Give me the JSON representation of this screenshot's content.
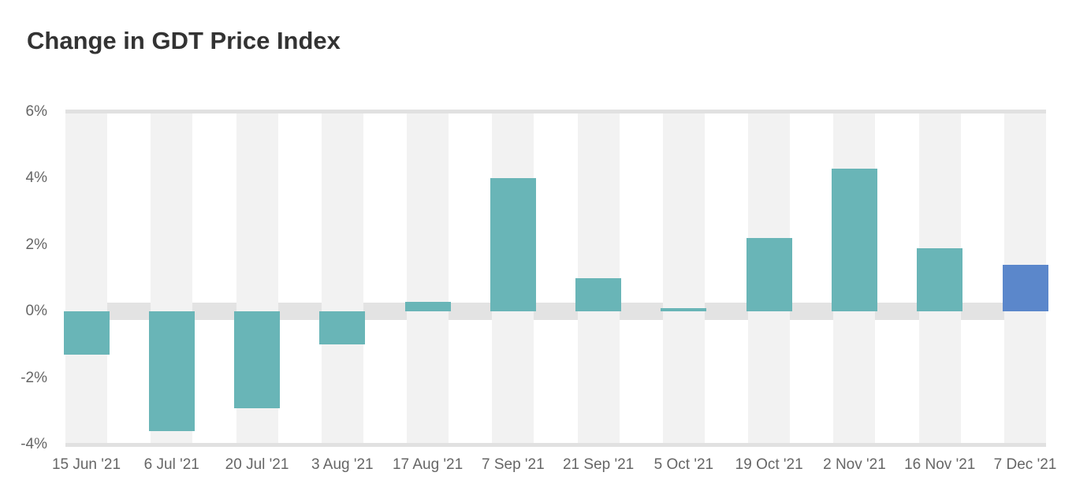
{
  "page": {
    "background": "#ffffff"
  },
  "chart_data": {
    "type": "bar",
    "title": "Change in GDT Price Index",
    "categories": [
      "15 Jun '21",
      "6 Jul '21",
      "20 Jul '21",
      "3 Aug '21",
      "17 Aug '21",
      "7 Sep '21",
      "21 Sep '21",
      "5 Oct '21",
      "19 Oct '21",
      "2 Nov '21",
      "16 Nov '21",
      "7 Dec '21"
    ],
    "values": [
      -1.3,
      -3.6,
      -2.9,
      -1.0,
      0.3,
      4.0,
      1.0,
      0.1,
      2.2,
      4.3,
      1.9,
      1.4
    ],
    "value_unit": "%",
    "xlabel": "",
    "ylabel": "",
    "ylim": [
      -4,
      6
    ],
    "y_ticks": [
      {
        "value": 6,
        "label": "6%"
      },
      {
        "value": 4,
        "label": "4%"
      },
      {
        "value": 2,
        "label": "2%"
      },
      {
        "value": 0,
        "label": "0%"
      },
      {
        "value": -2,
        "label": "-2%"
      },
      {
        "value": -4,
        "label": "-4%"
      }
    ],
    "legend": "none",
    "grid": "edge gridlines at 6% and -4%, thick band at 0%, vertical stripes behind each category",
    "colors": {
      "bar_default": "#69b5b7",
      "bar_latest": "#5b87cb",
      "latest_index": 11,
      "column_stripe": "#f2f2f2",
      "zero_band": "#e3e3e3",
      "edge_gridline": "#e1e1e1",
      "axis_label": "#666666",
      "title": "#333333",
      "background": "#ffffff"
    }
  }
}
